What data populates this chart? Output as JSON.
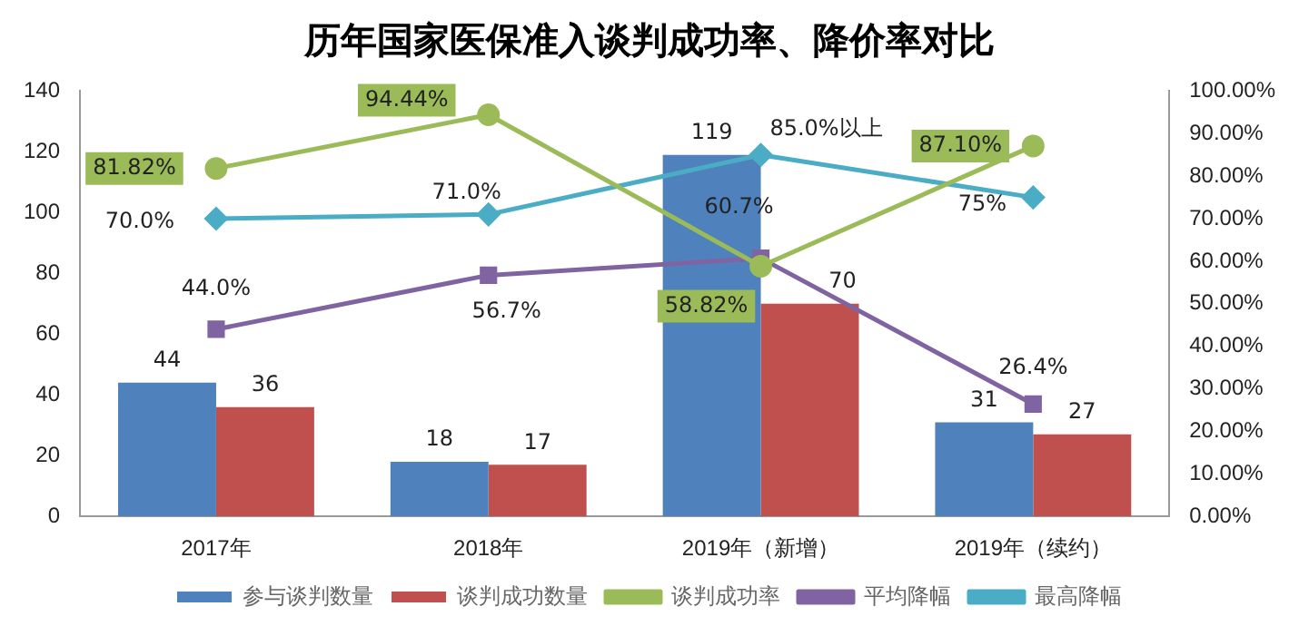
{
  "chart_data": {
    "type": "bar",
    "title": "历年国家医保准入谈判成功率、降价率对比",
    "categories": [
      "2017年",
      "2018年",
      "2019年（新增）",
      "2019年（续约）"
    ],
    "ylim": [
      0,
      140
    ],
    "yticks": [
      0,
      20,
      40,
      60,
      80,
      100,
      120,
      140
    ],
    "y2lim": [
      0,
      100
    ],
    "y2ticks": [
      {
        "value": 0,
        "label": "0.00%"
      },
      {
        "value": 10,
        "label": "10.00%"
      },
      {
        "value": 20,
        "label": "20.00%"
      },
      {
        "value": 30,
        "label": "30.00%"
      },
      {
        "value": 40,
        "label": "40.00%"
      },
      {
        "value": 50,
        "label": "50.00%"
      },
      {
        "value": 60,
        "label": "60.00%"
      },
      {
        "value": 70,
        "label": "70.00%"
      },
      {
        "value": 80,
        "label": "80.00%"
      },
      {
        "value": 90,
        "label": "90.00%"
      },
      {
        "value": 100,
        "label": "100.00%"
      }
    ],
    "grid": false,
    "legend": "bottom",
    "series": [
      {
        "name": "参与谈判数量",
        "color": "#4f81bd",
        "values": [
          44,
          18,
          119,
          31
        ],
        "value_labels": [
          "44",
          "18",
          "119",
          "31"
        ]
      },
      {
        "name": "谈判成功数量",
        "color": "#c0504d",
        "values": [
          36,
          17,
          70,
          27
        ],
        "value_labels": [
          "36",
          "17",
          "70",
          "27"
        ]
      },
      {
        "name": "谈判成功率",
        "type": "line",
        "axis": "y2",
        "marker": "circle",
        "color": "#9bbb59",
        "values": [
          81.82,
          94.44,
          58.82,
          87.1
        ],
        "value_labels": [
          "81.82%",
          "94.44%",
          "58.82%",
          "87.10%"
        ]
      },
      {
        "name": "平均降幅",
        "type": "line",
        "axis": "y2",
        "marker": "square",
        "color": "#8064a2",
        "values": [
          44.0,
          56.7,
          60.7,
          26.4
        ],
        "value_labels": [
          "44.0%",
          "56.7%",
          "60.7%",
          "26.4%"
        ]
      },
      {
        "name": "最高降幅",
        "type": "line",
        "axis": "y2",
        "marker": "diamond",
        "color": "#4bacc6",
        "values": [
          70.0,
          71.0,
          85.0,
          75
        ],
        "value_labels": [
          "70.0%",
          "71.0%",
          "85.0%以上",
          "75%"
        ]
      }
    ]
  }
}
